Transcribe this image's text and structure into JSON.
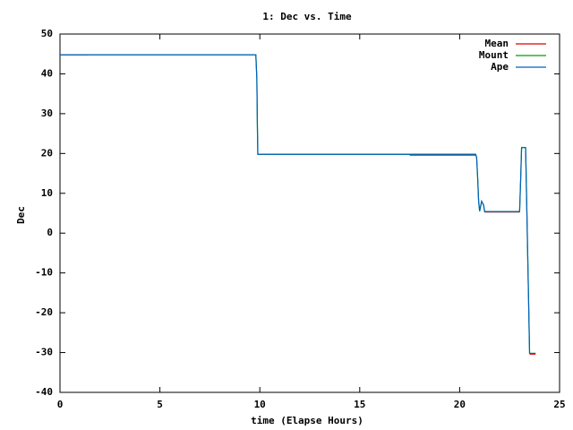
{
  "chart_data": {
    "type": "line",
    "title": "1: Dec vs. Time",
    "xlabel": "time (Elapse Hours)",
    "ylabel": "Dec",
    "x": [
      0,
      1.4,
      9.8,
      9.85,
      9.88,
      9.9,
      17.5,
      20.8,
      20.85,
      20.9,
      20.95,
      21.0,
      21.1,
      21.2,
      21.25,
      23.0,
      23.05,
      23.1,
      23.3,
      23.35,
      23.45,
      23.5,
      23.8
    ],
    "series": [
      {
        "name": "Mean",
        "color": "#e00000",
        "values": [
          44.8,
          44.8,
          null,
          null,
          null,
          null,
          19.6,
          19.6,
          null,
          null,
          null,
          null,
          null,
          null,
          5.3,
          5.3,
          null,
          null,
          null,
          null,
          null,
          -30.4,
          -30.4
        ]
      },
      {
        "name": "Mount",
        "color": "#00a000",
        "values": [
          44.8,
          44.8,
          44.8,
          39,
          26,
          19.8,
          19.8,
          19.8,
          19,
          14,
          8,
          5.5,
          8,
          7,
          5.4,
          5.4,
          13,
          21.5,
          21.5,
          9,
          -17,
          -30.2,
          -30.2
        ]
      },
      {
        "name": "Ape",
        "color": "#0060c0",
        "values": [
          44.8,
          44.8,
          44.8,
          39,
          26,
          19.8,
          19.8,
          19.8,
          19,
          14,
          8,
          5.5,
          8,
          7,
          5.4,
          5.4,
          13,
          21.5,
          21.5,
          9,
          -17,
          -30.2,
          -30.2
        ]
      }
    ],
    "xlim": [
      0,
      25
    ],
    "xticks": [
      0,
      5,
      10,
      15,
      20,
      25
    ],
    "ylim": [
      -40,
      50
    ],
    "yticks": [
      -40,
      -30,
      -20,
      -10,
      0,
      10,
      20,
      30,
      40,
      50
    ],
    "grid": false,
    "legend": "upper right"
  }
}
